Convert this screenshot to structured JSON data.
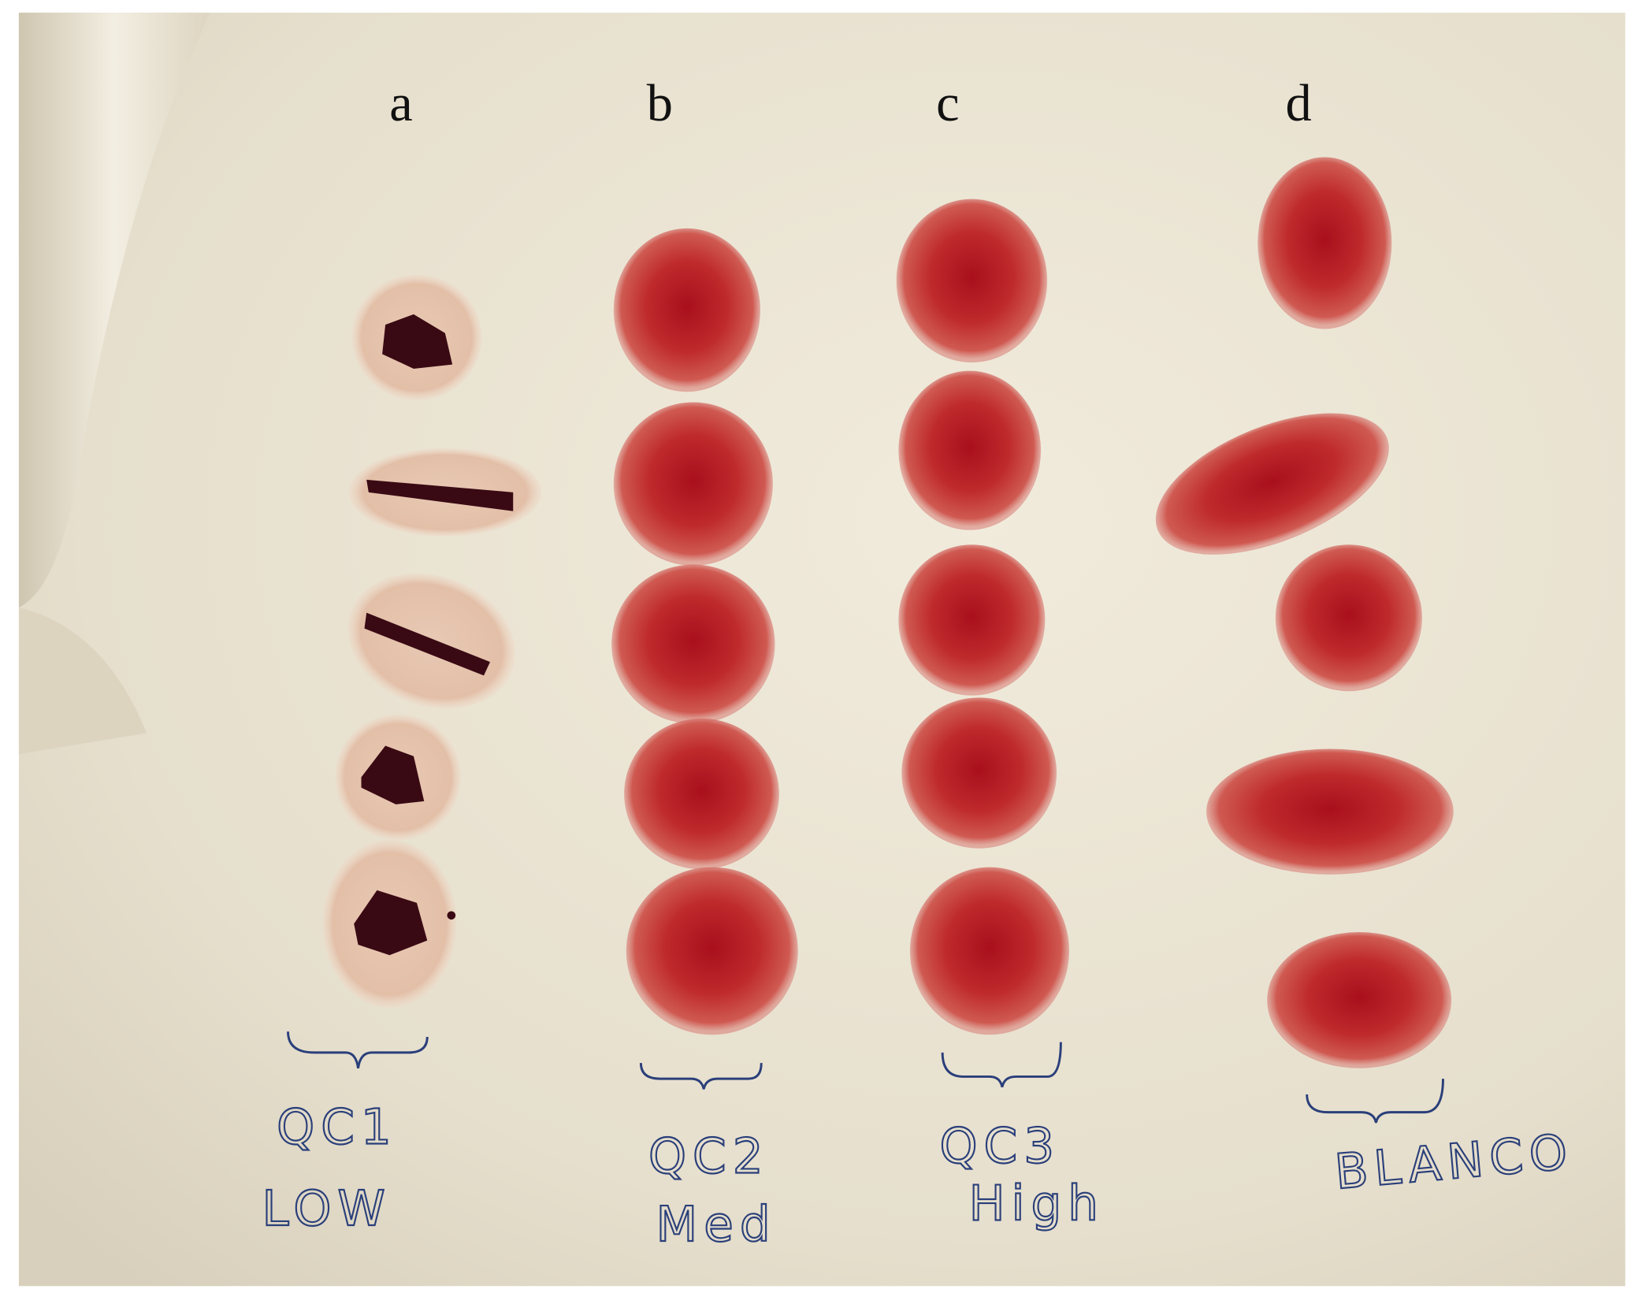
{
  "column_labels": [
    "a",
    "b",
    "c",
    "d"
  ],
  "annotations": [
    [
      "QC1",
      "LOW"
    ],
    [
      "QC2",
      "Med"
    ],
    [
      "QC3",
      "High"
    ],
    [
      "BLANCO"
    ]
  ]
}
